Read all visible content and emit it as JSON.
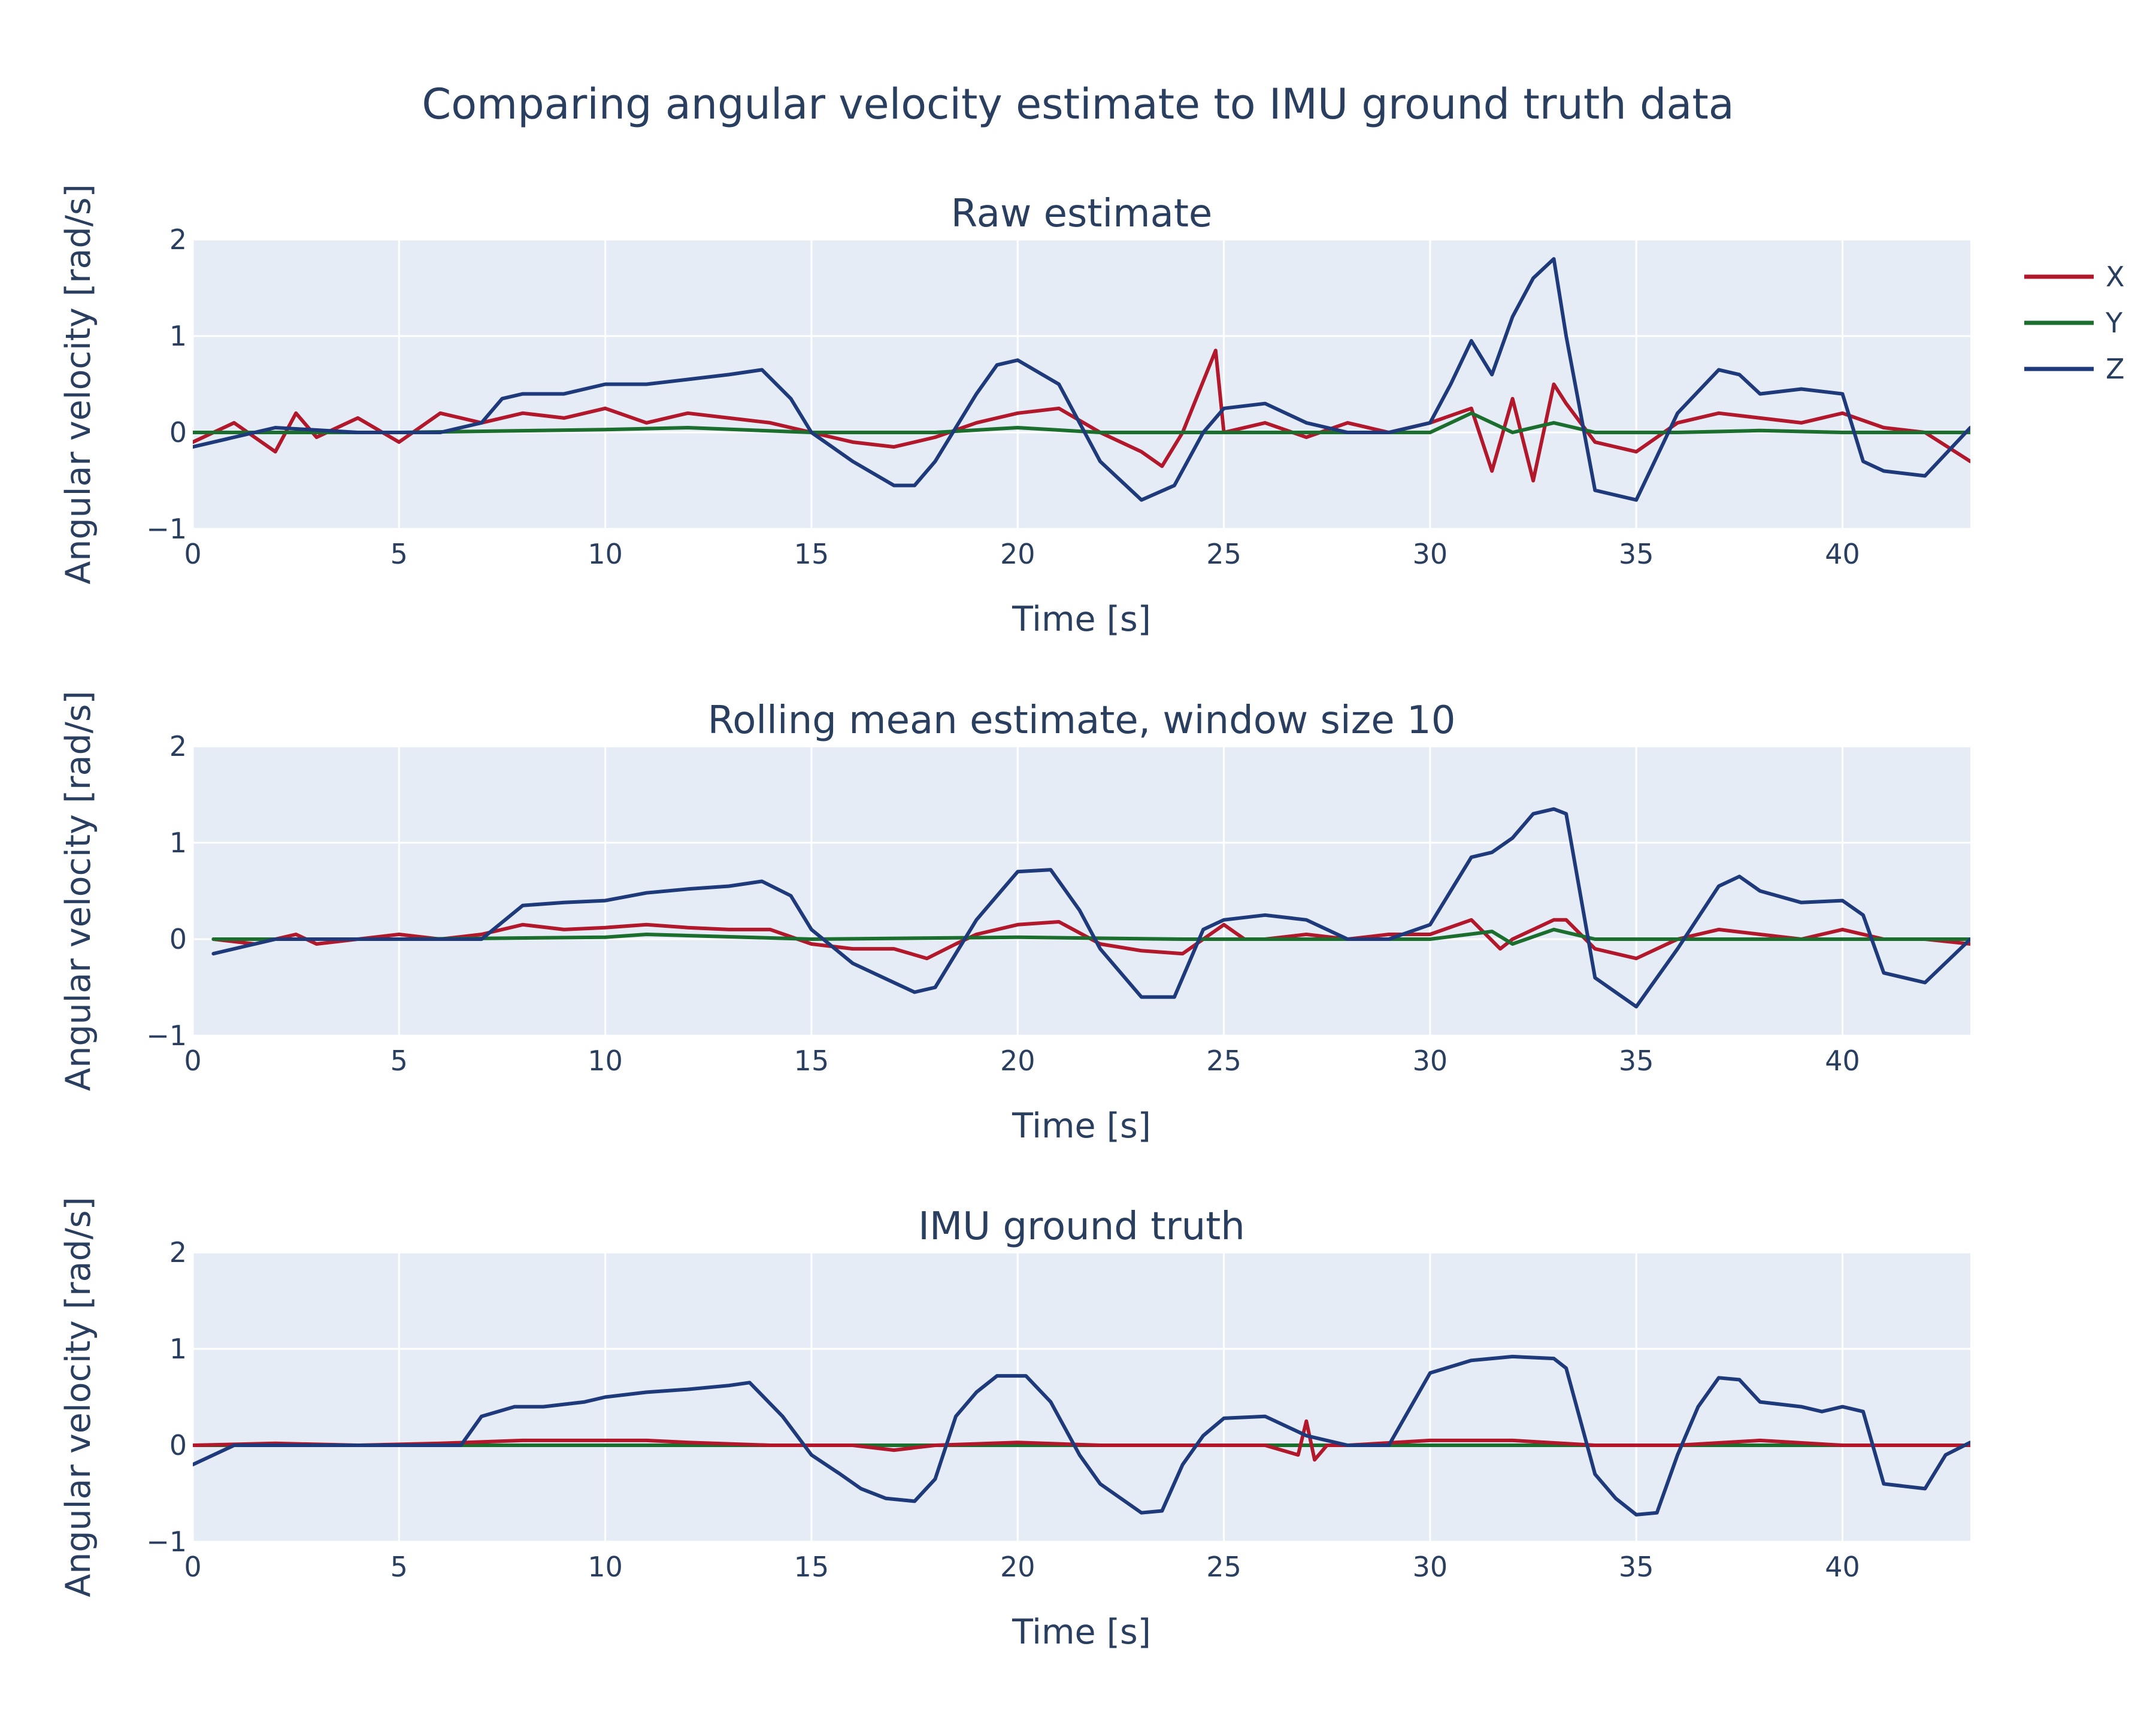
{
  "title": "Comparing angular velocity estimate to IMU ground truth data",
  "legend": {
    "placement": "top-right",
    "items": [
      {
        "label": "X",
        "color": "#b2182b"
      },
      {
        "label": "Y",
        "color": "#1b6e2d"
      },
      {
        "label": "Z",
        "color": "#1f3a7a"
      }
    ]
  },
  "chart_data": [
    {
      "type": "line",
      "title": "Raw estimate",
      "xlabel": "Time [s]",
      "ylabel": "Angular velocity [rad/s]",
      "xlim": [
        0,
        43.1
      ],
      "ylim": [
        -1,
        2
      ],
      "xticks": [
        0,
        5,
        10,
        15,
        20,
        25,
        30,
        35,
        40
      ],
      "yticks": [
        -1,
        0,
        1,
        2
      ],
      "grid": true,
      "series": [
        {
          "name": "X",
          "color": "#b2182b",
          "x": [
            0,
            1,
            2,
            2.5,
            3,
            4,
            5,
            6,
            7,
            8,
            9,
            10,
            11,
            12,
            13,
            14,
            15,
            16,
            17,
            18,
            19,
            20,
            21,
            22,
            23,
            23.5,
            24,
            24.8,
            25,
            26,
            27,
            28,
            29,
            30,
            31,
            31.5,
            32,
            32.5,
            33,
            33.3,
            34,
            35,
            36,
            37,
            38,
            39,
            40,
            41,
            42,
            43.1
          ],
          "y": [
            -0.1,
            0.1,
            -0.2,
            0.2,
            -0.05,
            0.15,
            -0.1,
            0.2,
            0.1,
            0.2,
            0.15,
            0.25,
            0.1,
            0.2,
            0.15,
            0.1,
            0.0,
            -0.1,
            -0.15,
            -0.05,
            0.1,
            0.2,
            0.25,
            0.0,
            -0.2,
            -0.35,
            0.0,
            0.85,
            0.0,
            0.1,
            -0.05,
            0.1,
            0.0,
            0.1,
            0.25,
            -0.4,
            0.35,
            -0.5,
            0.5,
            0.3,
            -0.1,
            -0.2,
            0.1,
            0.2,
            0.15,
            0.1,
            0.2,
            0.05,
            0.0,
            -0.3
          ]
        },
        {
          "name": "Y",
          "color": "#1b6e2d",
          "x": [
            0,
            5,
            10,
            12,
            15,
            18,
            20,
            22,
            25,
            28,
            30,
            31,
            32,
            33,
            34,
            36,
            38,
            40,
            43.1
          ],
          "y": [
            0.0,
            0.0,
            0.03,
            0.05,
            0.0,
            0.0,
            0.05,
            0.0,
            0.0,
            0.0,
            0.0,
            0.2,
            0.0,
            0.1,
            0.0,
            0.0,
            0.02,
            0.0,
            0.0
          ]
        },
        {
          "name": "Z",
          "color": "#1f3a7a",
          "x": [
            0,
            2,
            4,
            6,
            7,
            7.5,
            8,
            9,
            10,
            11,
            12,
            13,
            13.8,
            14.5,
            15,
            16,
            17,
            17.5,
            18,
            19,
            19.5,
            20,
            21,
            22,
            23,
            23.8,
            24.5,
            25,
            26,
            27,
            28,
            29,
            30,
            30.5,
            31,
            31.5,
            32,
            32.5,
            33,
            33.3,
            34,
            35,
            36,
            37,
            37.5,
            38,
            39,
            40,
            40.5,
            41,
            42,
            43.1
          ],
          "y": [
            -0.15,
            0.05,
            0.0,
            0.0,
            0.1,
            0.35,
            0.4,
            0.4,
            0.5,
            0.5,
            0.55,
            0.6,
            0.65,
            0.35,
            0.0,
            -0.3,
            -0.55,
            -0.55,
            -0.3,
            0.4,
            0.7,
            0.75,
            0.5,
            -0.3,
            -0.7,
            -0.55,
            0.0,
            0.25,
            0.3,
            0.1,
            0.0,
            0.0,
            0.1,
            0.5,
            0.95,
            0.6,
            1.2,
            1.6,
            1.8,
            1.0,
            -0.6,
            -0.7,
            0.2,
            0.65,
            0.6,
            0.4,
            0.45,
            0.4,
            -0.3,
            -0.4,
            -0.45,
            0.05
          ]
        }
      ]
    },
    {
      "type": "line",
      "title": "Rolling mean estimate, window size 10",
      "xlabel": "Time [s]",
      "ylabel": "Angular velocity [rad/s]",
      "xlim": [
        0,
        43.1
      ],
      "ylim": [
        -1,
        2
      ],
      "xticks": [
        0,
        5,
        10,
        15,
        20,
        25,
        30,
        35,
        40
      ],
      "yticks": [
        -1,
        0,
        1,
        2
      ],
      "grid": true,
      "series": [
        {
          "name": "X",
          "color": "#b2182b",
          "x": [
            0.5,
            1.5,
            2.5,
            3,
            5,
            6,
            7,
            8,
            9,
            10,
            11,
            12,
            13,
            14,
            15,
            16,
            17,
            17.8,
            18.5,
            19,
            20,
            21,
            22,
            23,
            24,
            25,
            25.5,
            26,
            27,
            28,
            29,
            30,
            31,
            31.7,
            32,
            33,
            33.3,
            34,
            35,
            36,
            37,
            38,
            39,
            40,
            41,
            42,
            43.1
          ],
          "y": [
            0.0,
            -0.05,
            0.05,
            -0.05,
            0.05,
            0.0,
            0.05,
            0.15,
            0.1,
            0.12,
            0.15,
            0.12,
            0.1,
            0.1,
            -0.05,
            -0.1,
            -0.1,
            -0.2,
            -0.05,
            0.05,
            0.15,
            0.18,
            -0.05,
            -0.12,
            -0.15,
            0.15,
            0.0,
            0.0,
            0.05,
            0.0,
            0.05,
            0.05,
            0.2,
            -0.1,
            0.0,
            0.2,
            0.2,
            -0.1,
            -0.2,
            0.0,
            0.1,
            0.05,
            0.0,
            0.1,
            0.0,
            0.0,
            -0.05
          ]
        },
        {
          "name": "Y",
          "color": "#1b6e2d",
          "x": [
            0.5,
            5,
            10,
            11,
            15,
            20,
            24,
            27,
            30,
            31.5,
            32,
            33,
            34,
            36,
            40,
            43.1
          ],
          "y": [
            0.0,
            0.0,
            0.02,
            0.05,
            0.0,
            0.02,
            0.0,
            0.0,
            0.0,
            0.08,
            -0.05,
            0.1,
            0.0,
            0.0,
            0.0,
            0.0
          ]
        },
        {
          "name": "Z",
          "color": "#1f3a7a",
          "x": [
            0.5,
            2,
            4,
            6,
            7,
            8,
            9,
            10,
            11,
            12,
            13,
            13.8,
            14.5,
            15,
            16,
            17,
            17.5,
            18,
            19,
            19.5,
            20,
            20.8,
            21.5,
            22,
            23,
            23.8,
            24.5,
            25,
            26,
            27,
            28,
            29,
            30,
            30.5,
            31,
            31.5,
            32,
            32.5,
            33,
            33.3,
            34,
            35,
            36,
            37,
            37.5,
            38,
            39,
            40,
            40.5,
            41,
            42,
            43.1
          ],
          "y": [
            -0.15,
            0.0,
            0.0,
            0.0,
            0.0,
            0.35,
            0.38,
            0.4,
            0.48,
            0.52,
            0.55,
            0.6,
            0.45,
            0.1,
            -0.25,
            -0.45,
            -0.55,
            -0.5,
            0.2,
            0.45,
            0.7,
            0.72,
            0.3,
            -0.1,
            -0.6,
            -0.6,
            0.1,
            0.2,
            0.25,
            0.2,
            0.0,
            0.0,
            0.15,
            0.5,
            0.85,
            0.9,
            1.05,
            1.3,
            1.35,
            1.3,
            -0.4,
            -0.7,
            -0.1,
            0.55,
            0.65,
            0.5,
            0.38,
            0.4,
            0.25,
            -0.35,
            -0.45,
            0.0
          ]
        }
      ]
    },
    {
      "type": "line",
      "title": "IMU ground truth",
      "xlabel": "Time [s]",
      "ylabel": "Angular velocity [rad/s]",
      "xlim": [
        0,
        43.1
      ],
      "ylim": [
        -1,
        2
      ],
      "xticks": [
        0,
        5,
        10,
        15,
        20,
        25,
        30,
        35,
        40
      ],
      "yticks": [
        -1,
        0,
        1,
        2
      ],
      "grid": true,
      "series": [
        {
          "name": "Y",
          "color": "#1b6e2d",
          "x": [
            0,
            10,
            20,
            30,
            43.1
          ],
          "y": [
            0.0,
            0.0,
            0.0,
            0.0,
            0.0
          ]
        },
        {
          "name": "X",
          "color": "#b2182b",
          "x": [
            0,
            2,
            4,
            6,
            8,
            10,
            11,
            12,
            14,
            16,
            17,
            18,
            20,
            22,
            24,
            26,
            26.8,
            27,
            27.2,
            27.5,
            28,
            30,
            32,
            34,
            36,
            38,
            40,
            42,
            43.1
          ],
          "y": [
            0.0,
            0.02,
            0.0,
            0.02,
            0.05,
            0.05,
            0.05,
            0.03,
            0.0,
            0.0,
            -0.05,
            0.0,
            0.03,
            0.0,
            0.0,
            0.0,
            -0.1,
            0.25,
            -0.15,
            0.0,
            0.0,
            0.05,
            0.05,
            0.0,
            0.0,
            0.05,
            0.0,
            0.0,
            0.0
          ]
        },
        {
          "name": "Z",
          "color": "#1f3a7a",
          "x": [
            0,
            1,
            2,
            4,
            6,
            6.5,
            7,
            7.8,
            8.5,
            9.5,
            10,
            11,
            12,
            13,
            13.5,
            14.3,
            15,
            15.7,
            16.2,
            16.8,
            17.5,
            18,
            18.5,
            19,
            19.5,
            20.2,
            20.8,
            21.5,
            22,
            23,
            23.5,
            24,
            24.5,
            25,
            26,
            27,
            28,
            29,
            30,
            31,
            31.5,
            32,
            33,
            33.3,
            34,
            34.5,
            35,
            35.5,
            36,
            36.5,
            37,
            37.5,
            38,
            39,
            39.5,
            40,
            40.5,
            41,
            42,
            42.5,
            43.1
          ],
          "y": [
            -0.2,
            0.0,
            0.0,
            0.0,
            0.0,
            0.0,
            0.3,
            0.4,
            0.4,
            0.45,
            0.5,
            0.55,
            0.58,
            0.62,
            0.65,
            0.3,
            -0.1,
            -0.3,
            -0.45,
            -0.55,
            -0.58,
            -0.35,
            0.3,
            0.55,
            0.72,
            0.72,
            0.45,
            -0.1,
            -0.4,
            -0.7,
            -0.68,
            -0.2,
            0.1,
            0.28,
            0.3,
            0.1,
            0.0,
            0.0,
            0.75,
            0.88,
            0.9,
            0.92,
            0.9,
            0.8,
            -0.3,
            -0.55,
            -0.72,
            -0.7,
            -0.1,
            0.4,
            0.7,
            0.68,
            0.45,
            0.4,
            0.35,
            0.4,
            0.35,
            -0.4,
            -0.45,
            -0.1,
            0.03
          ]
        }
      ]
    }
  ]
}
